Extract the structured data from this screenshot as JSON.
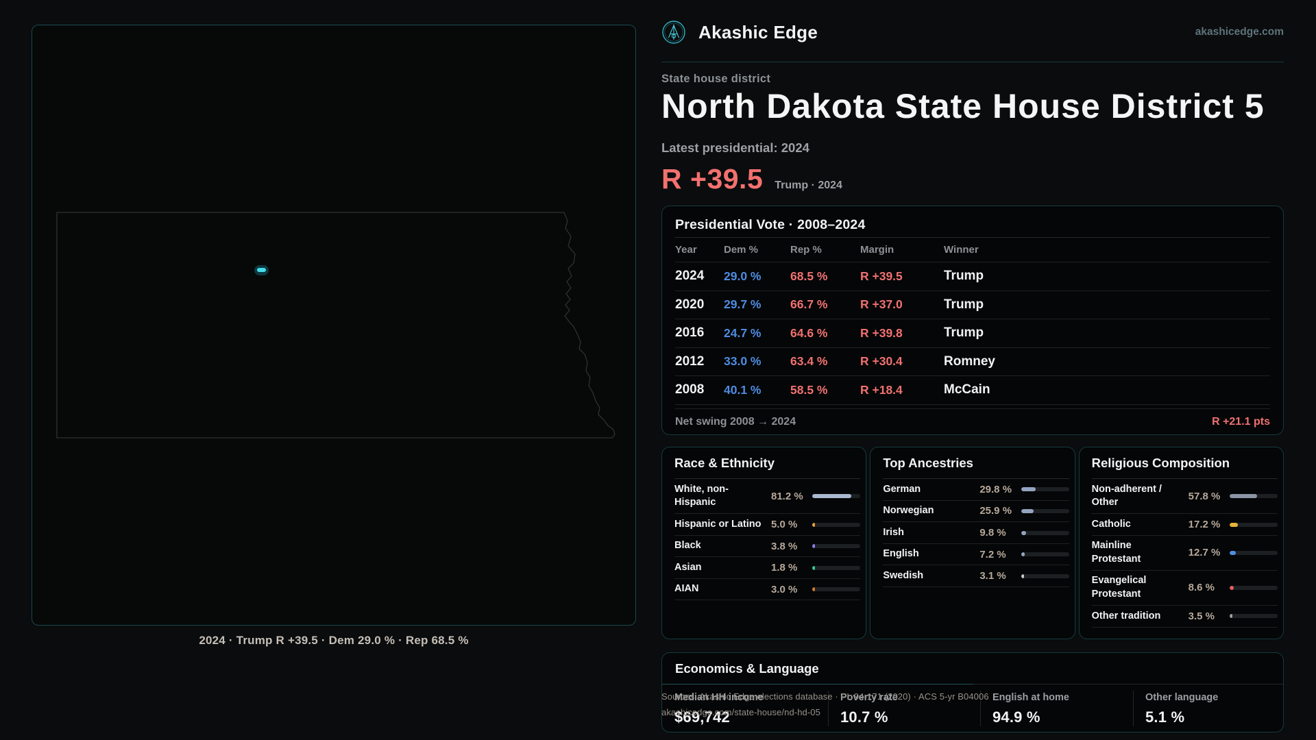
{
  "brand": {
    "name": "Akashic Edge",
    "domain": "akashicedge.com"
  },
  "hero": {
    "kicker": "State house district",
    "title": "North Dakota State House District 5",
    "latest_label": "Latest presidential: 2024",
    "margin": "R +39.5",
    "margin_note": "Trump · 2024",
    "margin_color": "#f2716f",
    "accent_teal": "#3fd4e4",
    "dem_blue": "#4d8ce2",
    "rep_red": "#f17170"
  },
  "map": {
    "caption": "2024 · Trump R +39.5 · Dem 29.0 % · Rep 68.5 %"
  },
  "table": {
    "title": "Presidential Vote · 2008–2024",
    "columns": [
      "Year",
      "Dem %",
      "Rep %",
      "Margin",
      "Winner"
    ],
    "rows": [
      {
        "year": "2024",
        "dem": "29.0 %",
        "rep": "68.5 %",
        "margin": "R +39.5",
        "winner": "Trump"
      },
      {
        "year": "2020",
        "dem": "29.7 %",
        "rep": "66.7 %",
        "margin": "R +37.0",
        "winner": "Trump"
      },
      {
        "year": "2016",
        "dem": "24.7 %",
        "rep": "64.6 %",
        "margin": "R +39.8",
        "winner": "Trump"
      },
      {
        "year": "2012",
        "dem": "33.0 %",
        "rep": "63.4 %",
        "margin": "R +30.4",
        "winner": "Romney"
      },
      {
        "year": "2008",
        "dem": "40.1 %",
        "rep": "58.5 %",
        "margin": "R +18.4",
        "winner": "McCain"
      }
    ],
    "footer_label": "Net swing 2008 → 2024",
    "footer_value": "R +21.1 pts"
  },
  "race": {
    "title": "Race & Ethnicity",
    "rows": [
      {
        "label": "White, non-\nHispanic",
        "value": "81.2 %",
        "pct": 81.2,
        "color": "#a9b9cf"
      },
      {
        "label": "Hispanic or Latino",
        "value": "5.0 %",
        "pct": 5.0,
        "color": "#e8a03c"
      },
      {
        "label": "Black",
        "value": "3.8 %",
        "pct": 3.8,
        "color": "#8d79ec"
      },
      {
        "label": "Asian",
        "value": "1.8 %",
        "pct": 1.8,
        "color": "#2fc99c"
      },
      {
        "label": "AIAN",
        "value": "3.0 %",
        "pct": 3.0,
        "color": "#cf7b28"
      }
    ]
  },
  "ancestries": {
    "title": "Top Ancestries",
    "rows": [
      {
        "label": "German",
        "value": "29.8 %",
        "pct": 29.8,
        "color": "#93a4c0"
      },
      {
        "label": "Norwegian",
        "value": "25.9 %",
        "pct": 25.9,
        "color": "#93a4c0"
      },
      {
        "label": "Irish",
        "value": "9.8 %",
        "pct": 9.8,
        "color": "#93a4c0"
      },
      {
        "label": "English",
        "value": "7.2 %",
        "pct": 7.2,
        "color": "#93a4c0"
      },
      {
        "label": "Swedish",
        "value": "3.1 %",
        "pct": 3.1,
        "color": "#c2c8ce"
      }
    ]
  },
  "religion": {
    "title": "Religious Composition",
    "rows": [
      {
        "label": "Non-adherent /\nOther",
        "value": "57.8 %",
        "pct": 57.8,
        "color": "#8b95a5"
      },
      {
        "label": "Catholic",
        "value": "17.2 %",
        "pct": 17.2,
        "color": "#e6b23a"
      },
      {
        "label": "Mainline\nProtestant",
        "value": "12.7 %",
        "pct": 12.7,
        "color": "#4f8fe0"
      },
      {
        "label": "Evangelical\nProtestant",
        "value": "8.6 %",
        "pct": 8.6,
        "color": "#e06060"
      },
      {
        "label": "Other tradition",
        "value": "3.5 %",
        "pct": 3.5,
        "color": "#9aa0a6"
      }
    ]
  },
  "economics": {
    "title": "Economics & Language",
    "stats": [
      {
        "label": "Median HH income",
        "value": "$69,742"
      },
      {
        "label": "Poverty rate",
        "value": "10.7 %"
      },
      {
        "label": "English at home",
        "value": "94.9 %"
      },
      {
        "label": "Other language",
        "value": "5.1 %"
      }
    ]
  },
  "sources": {
    "line1": "Sources: Akashic Edge elections database · PL 94-171 (2020) · ACS 5-yr B04006",
    "line2": "akashicedge.com/state-house/nd-hd-05"
  }
}
